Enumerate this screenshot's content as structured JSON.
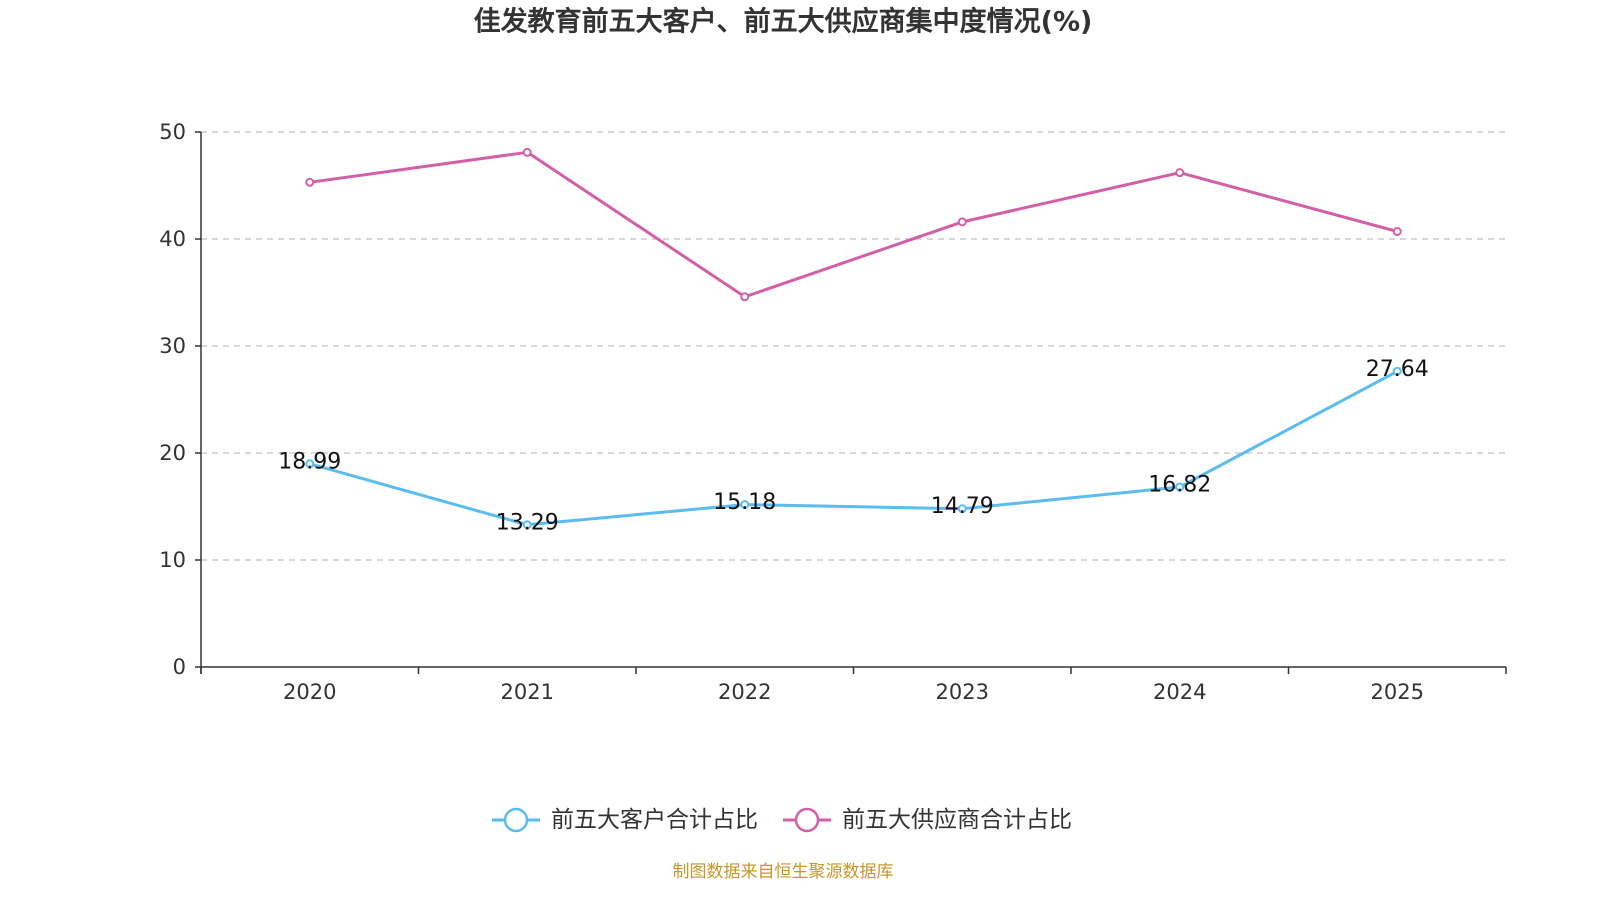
{
  "title": "佳发教育前五大客户、前五大供应商集中度情况(%)",
  "footer": "制图数据来自恒生聚源数据库",
  "colors": {
    "customer_series": "#5bbcef",
    "supplier_series": "#d260a9",
    "axis": "#333333",
    "grid": "#cccccc",
    "footer": "#c9952c"
  },
  "chart_data": {
    "type": "line",
    "title": "佳发教育前五大客户、前五大供应商集中度情况(%)",
    "xlabel": "",
    "ylabel": "",
    "categories": [
      "2020",
      "2021",
      "2022",
      "2023",
      "2024",
      "2025"
    ],
    "ylim": [
      0,
      50
    ],
    "yticks": [
      0,
      10,
      20,
      30,
      40,
      50
    ],
    "grid": true,
    "legend": "bottom-center",
    "series": [
      {
        "name": "前五大客户合计占比",
        "color": "#5bbcef",
        "show_labels": true,
        "values": [
          18.99,
          13.29,
          15.18,
          14.79,
          16.82,
          27.64
        ]
      },
      {
        "name": "前五大供应商合计占比",
        "color": "#d260a9",
        "show_labels": false,
        "values": [
          45.3,
          48.1,
          34.6,
          41.6,
          46.2,
          40.7
        ]
      }
    ]
  }
}
